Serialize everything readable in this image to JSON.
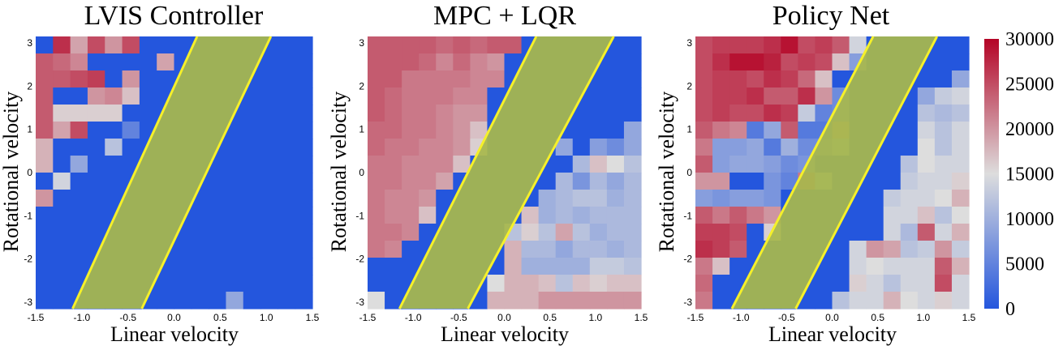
{
  "chart_data": {
    "type": "heatmap",
    "grid_size": 16,
    "x_range": [
      -1.5,
      1.5
    ],
    "y_range": [
      -3,
      3
    ],
    "x_ticks": [
      "-1.5",
      "-1.0",
      "-0.5",
      "0.0",
      "0.5",
      "1.0",
      "1.5"
    ],
    "y_ticks": [
      "3",
      "2",
      "1",
      "0",
      "-1",
      "-2",
      "-3"
    ],
    "colorbar": {
      "min": 0,
      "max": 30000,
      "ticks": [
        "30000",
        "25000",
        "20000",
        "15000",
        "10000",
        "5000",
        "0"
      ],
      "colors": {
        "low": "#2456dd",
        "mid": "#dddddd",
        "high": "#b40426"
      }
    },
    "band_colors": {
      "fill": "#a8b84c",
      "edge": "#f5f02a"
    },
    "panels": [
      {
        "title": "LVIS Controller",
        "xlabel": "Linear velocity",
        "ylabel": "Rotational velocity",
        "band_top": [
          0.25,
          1.05
        ],
        "band_bottom": [
          -1.1,
          -0.35
        ],
        "grid": [
          [
            0,
            27000,
            19000,
            25000,
            20000,
            25000,
            0,
            0,
            0,
            0,
            0,
            0,
            0,
            0,
            0,
            0
          ],
          [
            24000,
            23000,
            21000,
            0,
            0,
            0,
            0,
            19000,
            0,
            0,
            0,
            0,
            0,
            0,
            0,
            0
          ],
          [
            24000,
            24000,
            25000,
            26000,
            0,
            20000,
            0,
            0,
            0,
            0,
            0,
            0,
            0,
            0,
            0,
            0
          ],
          [
            24000,
            0,
            0,
            20000,
            21000,
            17000,
            0,
            0,
            0,
            0,
            0,
            0,
            0,
            0,
            0,
            0
          ],
          [
            24000,
            16000,
            16000,
            16000,
            16000,
            0,
            0,
            0,
            0,
            0,
            0,
            0,
            0,
            0,
            0,
            0
          ],
          [
            24000,
            19000,
            25000,
            0,
            0,
            5000,
            0,
            0,
            0,
            0,
            0,
            0,
            0,
            0,
            0,
            0
          ],
          [
            18000,
            0,
            0,
            0,
            12000,
            0,
            0,
            0,
            0,
            0,
            0,
            0,
            0,
            0,
            0,
            0
          ],
          [
            18000,
            0,
            9000,
            0,
            0,
            0,
            0,
            0,
            0,
            0,
            0,
            0,
            0,
            0,
            0,
            0
          ],
          [
            0,
            14000,
            0,
            0,
            0,
            0,
            0,
            0,
            0,
            0,
            0,
            0,
            0,
            0,
            0,
            0
          ],
          [
            20000,
            0,
            0,
            0,
            0,
            0,
            0,
            0,
            0,
            0,
            0,
            0,
            0,
            0,
            0,
            0
          ],
          [
            0,
            0,
            0,
            0,
            0,
            0,
            0,
            0,
            0,
            0,
            0,
            0,
            0,
            0,
            0,
            0
          ],
          [
            0,
            0,
            0,
            0,
            0,
            0,
            0,
            0,
            0,
            0,
            0,
            0,
            0,
            0,
            0,
            0
          ],
          [
            0,
            0,
            0,
            0,
            0,
            0,
            0,
            0,
            0,
            0,
            0,
            0,
            0,
            0,
            0,
            0
          ],
          [
            0,
            0,
            0,
            0,
            0,
            0,
            0,
            0,
            0,
            0,
            0,
            0,
            0,
            0,
            0,
            0
          ],
          [
            0,
            0,
            0,
            0,
            0,
            0,
            0,
            0,
            0,
            0,
            0,
            0,
            0,
            0,
            0,
            0
          ],
          [
            0,
            0,
            0,
            0,
            0,
            0,
            0,
            0,
            0,
            0,
            0,
            9000,
            0,
            0,
            0,
            0
          ]
        ]
      },
      {
        "title": "MPC + LQR",
        "xlabel": "Linear velocity",
        "ylabel": "Rotational velocity",
        "band_top": [
          0.35,
          1.2
        ],
        "band_bottom": [
          -1.15,
          -0.4
        ],
        "grid": [
          [
            24000,
            24000,
            24000,
            24000,
            23000,
            24000,
            23000,
            24000,
            24000,
            0,
            0,
            0,
            0,
            0,
            0,
            0
          ],
          [
            24000,
            24000,
            24000,
            23000,
            21000,
            23000,
            21000,
            20000,
            0,
            0,
            0,
            0,
            0,
            0,
            0,
            0
          ],
          [
            24000,
            24000,
            22000,
            22000,
            22000,
            22000,
            21000,
            21000,
            0,
            0,
            0,
            0,
            0,
            0,
            0,
            0
          ],
          [
            24000,
            23000,
            22000,
            22000,
            22000,
            21000,
            21000,
            0,
            0,
            0,
            0,
            0,
            0,
            0,
            0,
            0
          ],
          [
            24000,
            23000,
            22000,
            22000,
            21000,
            20000,
            20000,
            0,
            0,
            0,
            0,
            0,
            0,
            0,
            0,
            0
          ],
          [
            23000,
            23000,
            22000,
            22000,
            21000,
            20000,
            17000,
            0,
            0,
            0,
            0,
            0,
            0,
            0,
            0,
            9000
          ],
          [
            23000,
            22000,
            22000,
            21000,
            21000,
            20000,
            16000,
            0,
            0,
            0,
            0,
            9000,
            0,
            8000,
            6000,
            9000
          ],
          [
            22000,
            22000,
            21000,
            21000,
            21000,
            17000,
            0,
            0,
            0,
            0,
            0,
            0,
            11000,
            17000,
            15000,
            12000
          ],
          [
            22000,
            22000,
            21000,
            21000,
            19000,
            0,
            0,
            0,
            0,
            0,
            0,
            11000,
            7000,
            11000,
            9000,
            11000
          ],
          [
            22000,
            21000,
            21000,
            20000,
            0,
            0,
            0,
            0,
            0,
            0,
            10000,
            11000,
            12000,
            12000,
            10000,
            11000
          ],
          [
            22000,
            21000,
            21000,
            17000,
            0,
            0,
            0,
            0,
            0,
            17000,
            10000,
            11000,
            10000,
            11000,
            11000,
            11000
          ],
          [
            22000,
            22000,
            21000,
            0,
            0,
            0,
            0,
            0,
            12000,
            16000,
            12000,
            19000,
            12000,
            10000,
            11000,
            11000
          ],
          [
            22000,
            21000,
            0,
            0,
            0,
            0,
            0,
            0,
            18000,
            11000,
            11000,
            9000,
            11000,
            11000,
            10000,
            11000
          ],
          [
            0,
            0,
            0,
            0,
            0,
            0,
            0,
            0,
            18000,
            10000,
            10000,
            10000,
            10000,
            13000,
            13000,
            12000
          ],
          [
            0,
            0,
            0,
            0,
            0,
            0,
            0,
            15000,
            18000,
            18000,
            17000,
            12000,
            17000,
            16000,
            17000,
            17000
          ],
          [
            15000,
            0,
            0,
            0,
            0,
            0,
            0,
            18000,
            18000,
            18000,
            20000,
            20000,
            20000,
            20000,
            20000,
            20000
          ]
        ]
      },
      {
        "title": "Policy Net",
        "xlabel": "Linear velocity",
        "ylabel": "Rotational velocity",
        "band_top": [
          0.45,
          1.15
        ],
        "band_bottom": [
          -1.1,
          -0.4
        ],
        "grid": [
          [
            25000,
            26000,
            26000,
            26000,
            27000,
            29000,
            25000,
            26000,
            24000,
            14000,
            0,
            0,
            0,
            0,
            0,
            0
          ],
          [
            25000,
            27000,
            29000,
            29000,
            28000,
            25000,
            26000,
            25000,
            17000,
            8000,
            0,
            0,
            0,
            0,
            0,
            0
          ],
          [
            25000,
            26000,
            26000,
            25000,
            27000,
            26000,
            23000,
            17000,
            0,
            0,
            0,
            0,
            0,
            0,
            0,
            9000
          ],
          [
            25000,
            26000,
            26000,
            27000,
            24000,
            24000,
            27000,
            20000,
            6000,
            0,
            0,
            0,
            0,
            9000,
            13000,
            14000
          ],
          [
            25000,
            26000,
            25000,
            25000,
            27000,
            26000,
            13000,
            5000,
            6000,
            0,
            0,
            0,
            0,
            12000,
            11000,
            12000
          ],
          [
            24000,
            22000,
            21000,
            4000,
            9000,
            24000,
            4000,
            4000,
            20000,
            0,
            0,
            0,
            0,
            14000,
            12000,
            14000
          ],
          [
            22000,
            8000,
            8000,
            9000,
            4000,
            10000,
            6000,
            6000,
            10000,
            0,
            0,
            0,
            0,
            15000,
            12000,
            14000
          ],
          [
            24000,
            8000,
            9000,
            9000,
            8000,
            6000,
            7000,
            0,
            0,
            0,
            0,
            0,
            12000,
            15000,
            14000,
            14000
          ],
          [
            20000,
            20000,
            0,
            0,
            7000,
            5000,
            22000,
            10000,
            0,
            0,
            0,
            0,
            13000,
            14000,
            14000,
            16000
          ],
          [
            8000,
            7000,
            8000,
            8000,
            7000,
            0,
            0,
            0,
            0,
            0,
            0,
            13000,
            14000,
            14000,
            15000,
            18000
          ],
          [
            24000,
            22000,
            24000,
            22000,
            20000,
            0,
            0,
            0,
            0,
            0,
            0,
            14000,
            14000,
            17000,
            12000,
            15000
          ],
          [
            26000,
            26000,
            25000,
            0,
            16000,
            0,
            0,
            0,
            0,
            0,
            0,
            14000,
            11000,
            24000,
            14000,
            18000
          ],
          [
            27000,
            26000,
            24000,
            0,
            0,
            0,
            0,
            0,
            0,
            14000,
            20000,
            19000,
            12000,
            13000,
            20000,
            13000
          ],
          [
            22000,
            17000,
            0,
            0,
            0,
            0,
            0,
            0,
            0,
            14000,
            15000,
            14000,
            14000,
            14000,
            24000,
            18000
          ],
          [
            23000,
            0,
            0,
            0,
            0,
            0,
            0,
            0,
            0,
            16000,
            14000,
            12000,
            14000,
            14000,
            25000,
            14000
          ],
          [
            22000,
            0,
            0,
            0,
            0,
            0,
            0,
            0,
            12000,
            14000,
            14000,
            18000,
            15000,
            14000,
            16000,
            14000
          ]
        ]
      }
    ]
  }
}
